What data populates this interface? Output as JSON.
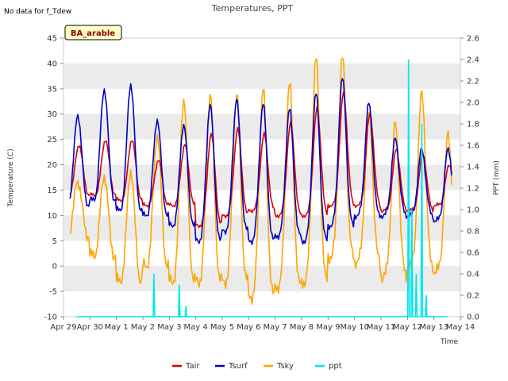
{
  "chart_data": {
    "type": "line",
    "title": "Temperatures, PPT",
    "note": "No data for f_Tdew",
    "badge": "BA_arable",
    "xlabel": "Time",
    "ylabel": "Temperature (C)",
    "y2label": "PPT (mm)",
    "x_ticks": [
      "Apr 29",
      "Apr 30",
      "May 1",
      "May 2",
      "May 3",
      "May 4",
      "May 5",
      "May 6",
      "May 7",
      "May 8",
      "May 9",
      "May 10",
      "May 11",
      "May 12",
      "May 13",
      "May 14"
    ],
    "y_ticks": [
      -10,
      -5,
      0,
      5,
      10,
      15,
      20,
      25,
      30,
      35,
      40,
      45
    ],
    "y2_ticks": [
      "0.0",
      "0.2",
      "0.4",
      "0.6",
      "0.8",
      "1.0",
      "1.2",
      "1.4",
      "1.6",
      "1.8",
      "2.0",
      "2.2",
      "2.4",
      "2.6"
    ],
    "xlim": [
      "2024-04-29",
      "2024-05-14"
    ],
    "ylim": [
      -10,
      45
    ],
    "y2lim": [
      0.0,
      2.6
    ],
    "grid": "horizontal bands",
    "legend_position": "bottom-center",
    "colors": {
      "Tair": "#dd0000",
      "Tsurf": "#0000cc",
      "Tsky": "#ffa500",
      "ppt": "#00e5ee",
      "band": "#ebebeb"
    },
    "series": [
      {
        "name": "Tair",
        "axis": "left",
        "daily_min": [
          14,
          14,
          13,
          12,
          12,
          8,
          10,
          11,
          10,
          10,
          12,
          12,
          11,
          11,
          12
        ],
        "daily_max": [
          24,
          25,
          25,
          21,
          24,
          26,
          27,
          26,
          28,
          31,
          34,
          30,
          23,
          22,
          20
        ]
      },
      {
        "name": "Tsurf",
        "axis": "left",
        "daily_min": [
          12,
          13,
          11,
          10,
          8,
          5,
          7,
          5,
          6,
          5,
          8,
          10,
          10,
          10,
          9
        ],
        "daily_max": [
          30,
          35,
          36,
          29,
          28,
          32,
          33,
          32,
          31,
          34,
          37,
          32,
          25,
          23,
          23
        ]
      },
      {
        "name": "Tsky",
        "axis": "left",
        "daily_min": [
          6,
          2,
          -3,
          0,
          -3,
          -3,
          -3,
          -6,
          -4,
          -3,
          2,
          1,
          -2,
          0,
          -1
        ],
        "daily_max": [
          17,
          18,
          19,
          26,
          33,
          34,
          34,
          35,
          36,
          41,
          41,
          30,
          28,
          34,
          26
        ]
      },
      {
        "name": "ppt",
        "axis": "right",
        "events": [
          {
            "t": "2024-05-02 10:00",
            "value": 0.4
          },
          {
            "t": "2024-05-03 09:00",
            "value": 0.3
          },
          {
            "t": "2024-05-03 15:00",
            "value": 0.1
          },
          {
            "t": "2024-05-12 01:00",
            "value": 2.4
          },
          {
            "t": "2024-05-12 04:00",
            "value": 1.0
          },
          {
            "t": "2024-05-12 08:00",
            "value": 0.4
          },
          {
            "t": "2024-05-12 13:00",
            "value": 1.8
          },
          {
            "t": "2024-05-12 17:00",
            "value": 0.2
          }
        ]
      }
    ]
  }
}
